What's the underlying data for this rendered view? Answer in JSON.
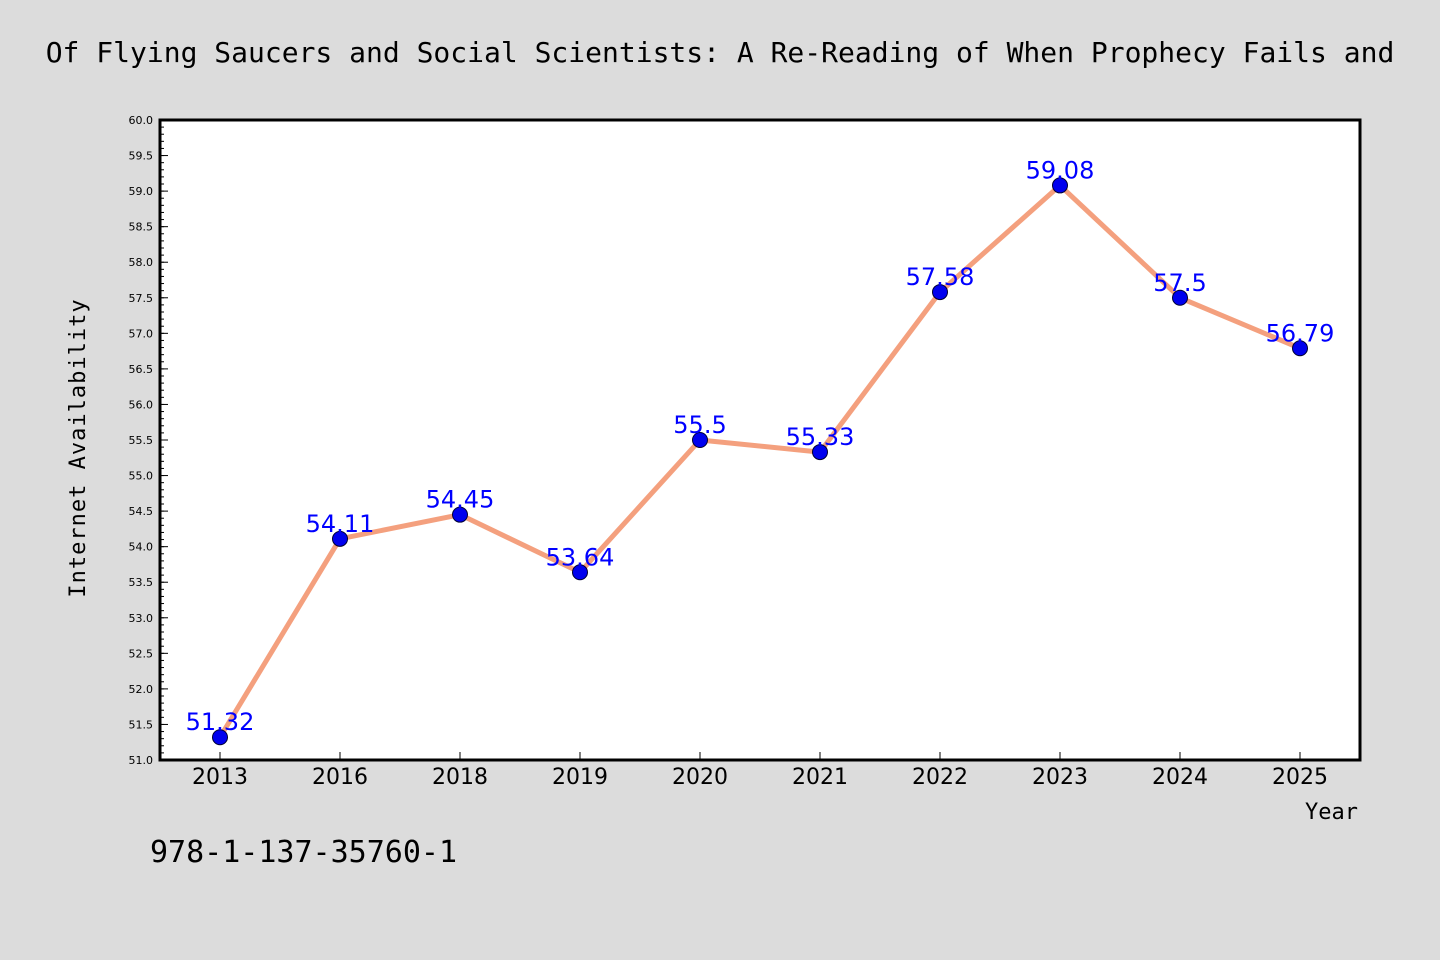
{
  "page": {
    "background": "#dcdcdc"
  },
  "title": "Of Flying Saucers and Social Scientists: A Re-Reading of When Prophecy Fails and",
  "isbn": "978-1-137-35760-1",
  "chart_data": {
    "type": "line",
    "categories": [
      "2013",
      "2016",
      "2018",
      "2019",
      "2020",
      "2021",
      "2022",
      "2023",
      "2024",
      "2025"
    ],
    "series": [
      {
        "values": [
          51.32,
          54.11,
          54.45,
          53.64,
          55.5,
          55.33,
          57.58,
          59.08,
          57.5,
          56.79
        ],
        "data_labels": [
          "51.32",
          "54.11",
          "54.45",
          "53.64",
          "55.5",
          "55.33",
          "57.58",
          "59.08",
          "57.5",
          "56.79"
        ],
        "line_color": "#f4a07e",
        "marker_color": "#0000ee",
        "label_color": "#0000ff"
      }
    ],
    "xlabel": "Year",
    "ylabel": "Internet Availability",
    "ylim": [
      51.0,
      60.0
    ],
    "yticks": [
      "51.0",
      "51.5",
      "52.0",
      "52.5",
      "53.0",
      "53.5",
      "54.0",
      "54.5",
      "55.0",
      "55.5",
      "56.0",
      "56.5",
      "57.0",
      "57.5",
      "58.0",
      "58.5",
      "59.0",
      "59.5",
      "60.0"
    ],
    "grid": false,
    "legend": "none"
  }
}
